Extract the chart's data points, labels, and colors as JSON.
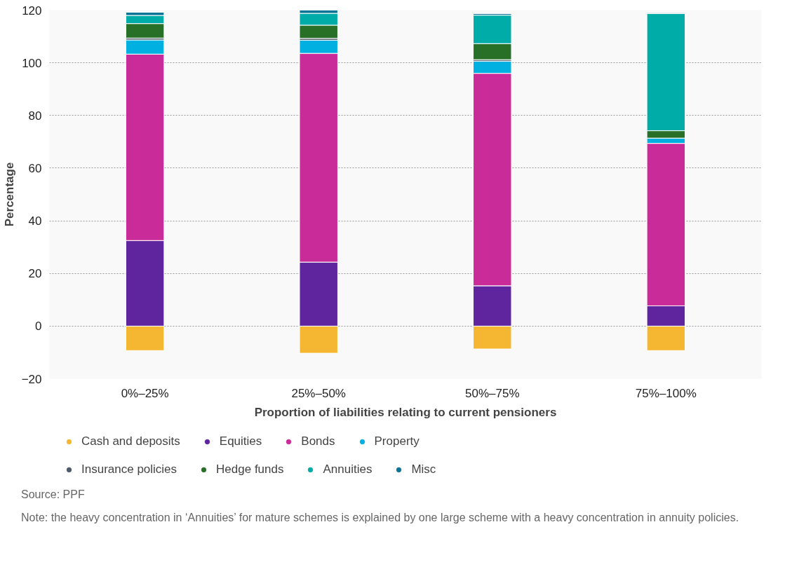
{
  "chart_data": {
    "type": "bar",
    "stacked": true,
    "xlabel": "Proportion of liabilities relating to current pensioners",
    "ylabel": "Percentage",
    "categories": [
      "0%–25%",
      "25%–50%",
      "50%–75%",
      "75%–100%"
    ],
    "series": [
      {
        "name": "Cash and deposits",
        "color": "#f5b731",
        "values": [
          -9.3,
          -10.3,
          -8.7,
          -9.3
        ]
      },
      {
        "name": "Equities",
        "color": "#5e259f",
        "values": [
          32.5,
          24.3,
          15.3,
          7.7
        ]
      },
      {
        "name": "Bonds",
        "color": "#c92b98",
        "values": [
          70.8,
          79.3,
          80.7,
          61.7
        ]
      },
      {
        "name": "Property",
        "color": "#00b0e0",
        "values": [
          5.4,
          5.0,
          4.6,
          2.0
        ]
      },
      {
        "name": "Insurance policies",
        "color": "#4a5a6a",
        "values": [
          0.7,
          0.7,
          0.6,
          null
        ]
      },
      {
        "name": "Hedge funds",
        "color": "#287028",
        "values": [
          5.5,
          5.0,
          6.1,
          2.8
        ]
      },
      {
        "name": "Annuities",
        "color": "#00aca7",
        "values": [
          3.1,
          4.5,
          10.8,
          44.5
        ]
      },
      {
        "name": "Misc",
        "color": "#0a7596",
        "values": [
          1.2,
          1.2,
          0.6,
          0.3
        ]
      }
    ],
    "ylim": [
      -20,
      120
    ],
    "yticks": [
      -20,
      0,
      20,
      40,
      60,
      80,
      100,
      120
    ],
    "grid": "y",
    "legend": "bottom",
    "annotations": [
      "Source: PPF",
      "Note: the heavy concentration in ‘Annuities’ for mature schemes is explained by one large scheme with a heavy concentration in annuity policies."
    ]
  }
}
